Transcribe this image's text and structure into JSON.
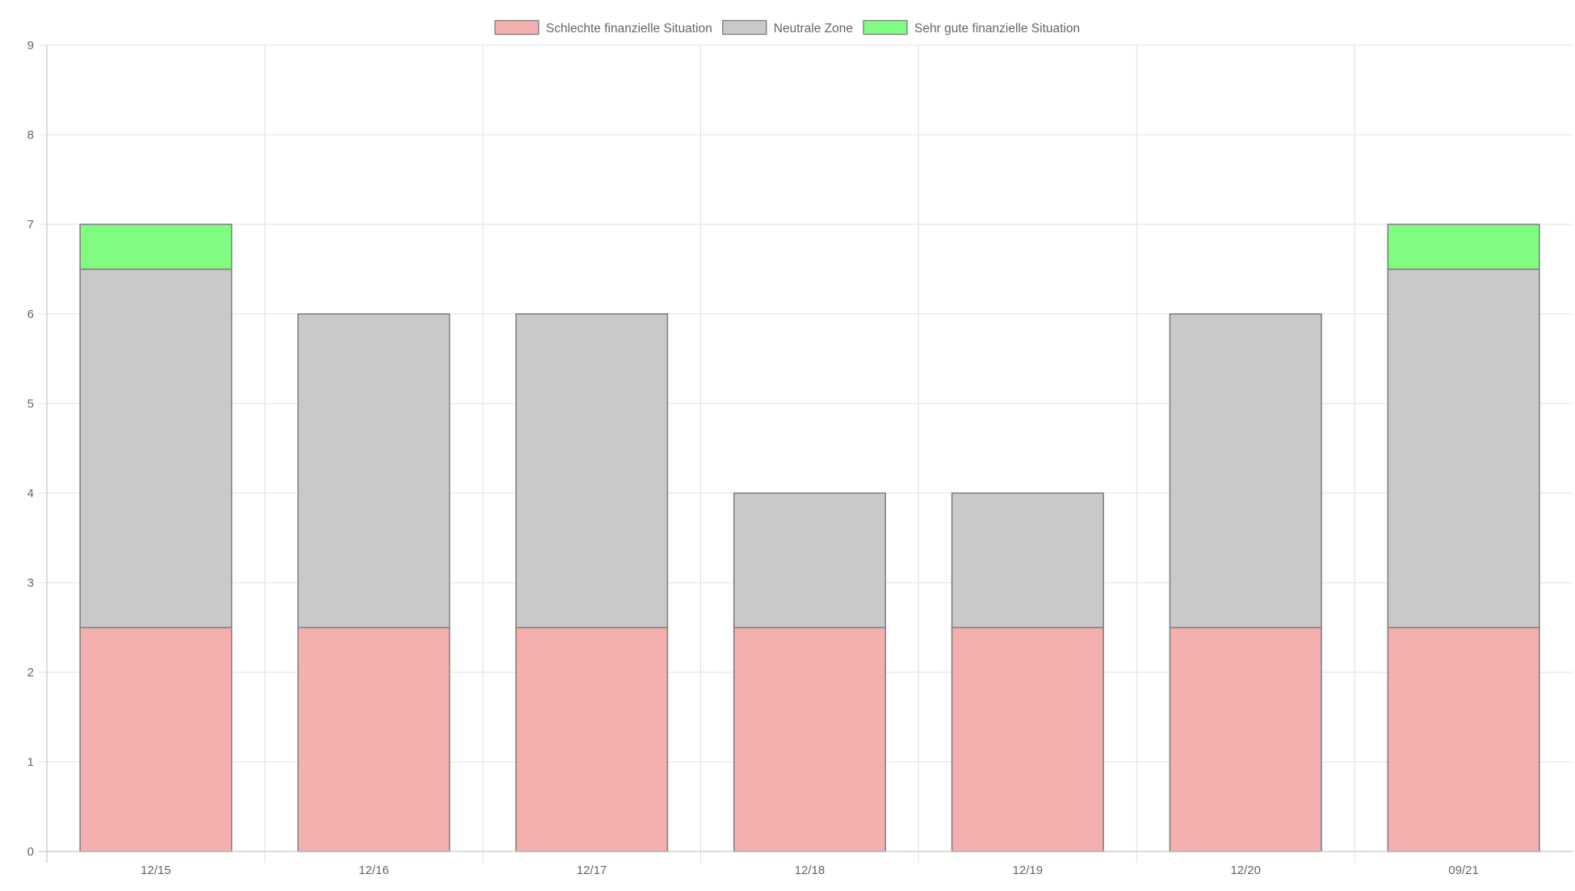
{
  "chart_data": {
    "type": "bar",
    "stacked": true,
    "categories": [
      "12/15",
      "12/16",
      "12/17",
      "12/18",
      "12/19",
      "12/20",
      "09/21"
    ],
    "series": [
      {
        "name": "Schlechte finanzielle Situation",
        "color": "#f4afaf",
        "values": [
          2.5,
          2.5,
          2.5,
          2.5,
          2.5,
          2.5,
          2.5
        ]
      },
      {
        "name": "Neutrale Zone",
        "color": "#c9c9c9",
        "values": [
          4,
          3.5,
          3.5,
          1.5,
          1.5,
          3.5,
          4
        ]
      },
      {
        "name": "Sehr gute finanzielle Situation",
        "color": "#80fd80",
        "values": [
          0.5,
          0,
          0,
          0,
          0,
          0,
          0.5
        ]
      }
    ],
    "ylim": [
      0,
      9
    ],
    "yticks": [
      0,
      1,
      2,
      3,
      4,
      5,
      6,
      7,
      8,
      9
    ],
    "xlabel": "",
    "ylabel": "",
    "grid": true,
    "legend_position": "top-center"
  }
}
